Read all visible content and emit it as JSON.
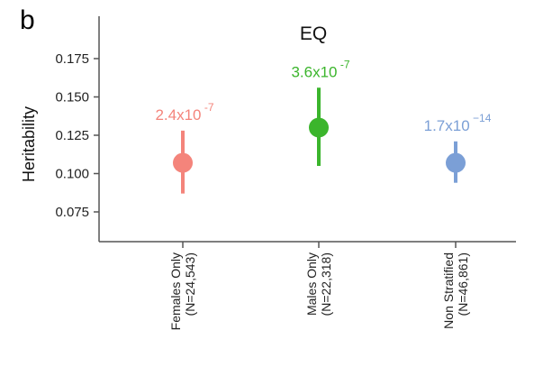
{
  "panel_label": "b",
  "chart_data": {
    "type": "scatter",
    "title": "EQ",
    "ylabel": "Heritability",
    "xlabel": "",
    "ylim": [
      0.06,
      0.18
    ],
    "yticks": [
      0.075,
      0.1,
      0.125,
      0.15,
      0.175
    ],
    "ytick_labels": [
      "0.075",
      "0.100",
      "0.125",
      "0.150",
      "0.175"
    ],
    "grid": false,
    "categories": [
      {
        "label_line1": "Females Only",
        "label_line2": "(N=24,543)"
      },
      {
        "label_line1": "Males Only",
        "label_line2": "(N=22,318)"
      },
      {
        "label_line1": "Non Stratified",
        "label_line2": "(N=46,861)"
      }
    ],
    "points": [
      {
        "value": 0.107,
        "lower": 0.087,
        "upper": 0.128,
        "p_base": "2.4x10",
        "p_exp": " -7",
        "color": "#f4847b"
      },
      {
        "value": 0.13,
        "lower": 0.105,
        "upper": 0.156,
        "p_base": "3.6x10",
        "p_exp": " -7",
        "color": "#3bb52c"
      },
      {
        "value": 0.107,
        "lower": 0.094,
        "upper": 0.121,
        "p_base": "1.7x10",
        "p_exp": " −14",
        "color": "#7b9fd6"
      }
    ]
  }
}
